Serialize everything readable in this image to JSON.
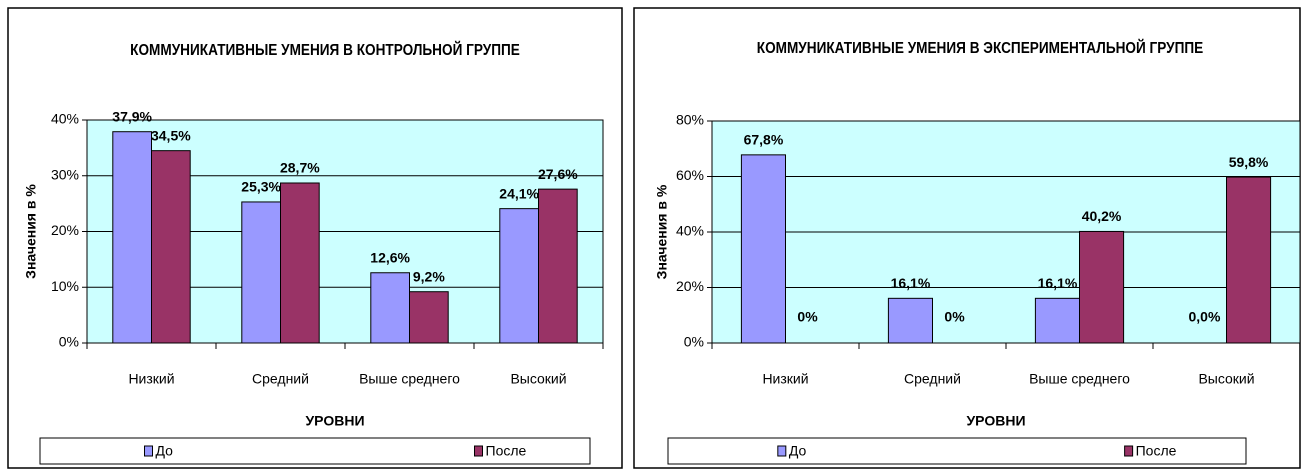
{
  "chart_data": [
    {
      "type": "bar",
      "title": "КОММУНИКАТИВНЫЕ УМЕНИЯ В КОНТРОЛЬНОЙ ГРУППЕ",
      "ylabel": "Значения в %",
      "xlabel": "УРОВНИ",
      "categories": [
        "Низкий",
        "Средний",
        "Выше среднего",
        "Высокий"
      ],
      "series": [
        {
          "name": "До",
          "color": "#9999ff",
          "values": [
            37.9,
            25.3,
            12.6,
            24.1
          ],
          "value_labels": [
            "37,9%",
            "25,3%",
            "12,6%",
            "24,1%"
          ]
        },
        {
          "name": "После",
          "color": "#993366",
          "values": [
            34.5,
            28.7,
            9.2,
            27.6
          ],
          "value_labels": [
            "34,5%",
            "28,7%",
            "9,2%",
            "27,6%"
          ]
        }
      ],
      "ylim": [
        0,
        40
      ],
      "yticks": [
        {
          "value": 0,
          "label": "0%"
        },
        {
          "value": 10,
          "label": "10%"
        },
        {
          "value": 20,
          "label": "20%"
        },
        {
          "value": 30,
          "label": "30%"
        },
        {
          "value": 40,
          "label": "40%"
        }
      ],
      "grid": true,
      "legend": "bottom"
    },
    {
      "type": "bar",
      "title": "КОММУНИКАТИВНЫЕ УМЕНИЯ В ЭКСПЕРИМЕНТАЛЬНОЙ ГРУППЕ",
      "ylabel": "Значения в %",
      "xlabel": "УРОВНИ",
      "categories": [
        "Низкий",
        "Средний",
        "Выше среднего",
        "Высокий"
      ],
      "series": [
        {
          "name": "До",
          "color": "#9999ff",
          "values": [
            67.8,
            16.1,
            16.1,
            0.0
          ],
          "value_labels": [
            "67,8%",
            "16,1%",
            "16,1%",
            "0,0%"
          ]
        },
        {
          "name": "После",
          "color": "#993366",
          "values": [
            0,
            0,
            40.2,
            59.8
          ],
          "value_labels": [
            "0%",
            "0%",
            "40,2%",
            "59,8%"
          ]
        }
      ],
      "ylim": [
        0,
        80
      ],
      "yticks": [
        {
          "value": 0,
          "label": "0%"
        },
        {
          "value": 20,
          "label": "20%"
        },
        {
          "value": 40,
          "label": "40%"
        },
        {
          "value": 60,
          "label": "60%"
        },
        {
          "value": 80,
          "label": "80%"
        }
      ],
      "grid": true,
      "legend": "bottom"
    }
  ]
}
